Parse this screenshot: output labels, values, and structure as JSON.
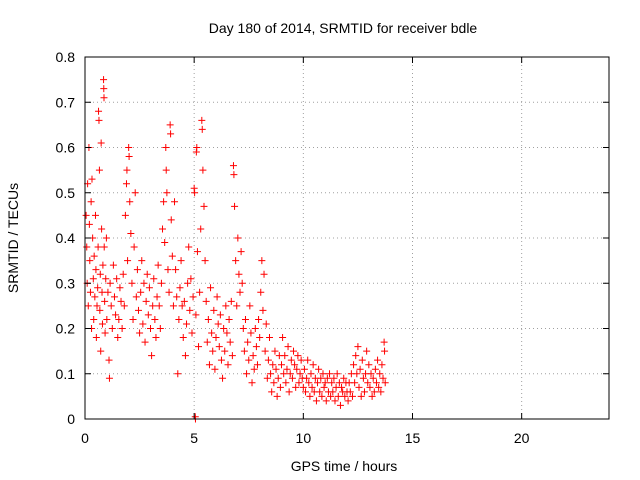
{
  "chart_data": {
    "type": "scatter",
    "title": "Day 180 of 2014, SRMTID for receiver bdle",
    "xlabel": "GPS time / hours",
    "ylabel": "SRMTID / TECUs",
    "xlim": [
      0,
      24
    ],
    "ylim": [
      0,
      0.8
    ],
    "xticks": [
      0,
      5,
      10,
      15,
      20
    ],
    "yticks": [
      0,
      0.1,
      0.2,
      0.3,
      0.4,
      0.5,
      0.6,
      0.7,
      0.8
    ],
    "xtick_labels": [
      "0",
      "5",
      "10",
      "15",
      "20"
    ],
    "ytick_labels": [
      "0",
      "0.1",
      "0.2",
      "0.3",
      "0.4",
      "0.5",
      "0.6",
      "0.7",
      "0.8"
    ],
    "grid": true,
    "marker": "+",
    "color": "#ff0000",
    "series": [
      {
        "name": "SRMTID",
        "points": [
          [
            0.05,
            0.45
          ],
          [
            0.08,
            0.38
          ],
          [
            0.1,
            0.3
          ],
          [
            0.12,
            0.52
          ],
          [
            0.15,
            0.25
          ],
          [
            0.18,
            0.6
          ],
          [
            0.2,
            0.43
          ],
          [
            0.22,
            0.35
          ],
          [
            0.25,
            0.28
          ],
          [
            0.28,
            0.48
          ],
          [
            0.3,
            0.2
          ],
          [
            0.32,
            0.53
          ],
          [
            0.35,
            0.4
          ],
          [
            0.38,
            0.31
          ],
          [
            0.4,
            0.22
          ],
          [
            0.42,
            0.36
          ],
          [
            0.45,
            0.27
          ],
          [
            0.48,
            0.45
          ],
          [
            0.5,
            0.33
          ],
          [
            0.52,
            0.18
          ],
          [
            0.55,
            0.25
          ],
          [
            0.58,
            0.29
          ],
          [
            0.6,
            0.38
          ],
          [
            0.62,
            0.68
          ],
          [
            0.64,
            0.66
          ],
          [
            0.66,
            0.55
          ],
          [
            0.68,
            0.24
          ],
          [
            0.7,
            0.32
          ],
          [
            0.72,
            0.15
          ],
          [
            0.74,
            0.61
          ],
          [
            0.76,
            0.42
          ],
          [
            0.78,
            0.28
          ],
          [
            0.8,
            0.21
          ],
          [
            0.82,
            0.34
          ],
          [
            0.85,
            0.75
          ],
          [
            0.86,
            0.73
          ],
          [
            0.87,
            0.71
          ],
          [
            0.88,
            0.38
          ],
          [
            0.9,
            0.26
          ],
          [
            0.92,
            0.19
          ],
          [
            0.95,
            0.31
          ],
          [
            0.98,
            0.4
          ],
          [
            1.0,
            0.22
          ],
          [
            1.05,
            0.28
          ],
          [
            1.1,
            0.13
          ],
          [
            1.12,
            0.09
          ],
          [
            1.15,
            0.3
          ],
          [
            1.2,
            0.25
          ],
          [
            1.25,
            0.2
          ],
          [
            1.3,
            0.34
          ],
          [
            1.35,
            0.27
          ],
          [
            1.4,
            0.23
          ],
          [
            1.45,
            0.31
          ],
          [
            1.5,
            0.18
          ],
          [
            1.55,
            0.22
          ],
          [
            1.6,
            0.29
          ],
          [
            1.65,
            0.26
          ],
          [
            1.7,
            0.2
          ],
          [
            1.75,
            0.32
          ],
          [
            1.8,
            0.25
          ],
          [
            1.85,
            0.45
          ],
          [
            1.9,
            0.52
          ],
          [
            1.92,
            0.55
          ],
          [
            1.95,
            0.35
          ],
          [
            2.0,
            0.6
          ],
          [
            2.02,
            0.58
          ],
          [
            2.05,
            0.48
          ],
          [
            2.1,
            0.41
          ],
          [
            2.15,
            0.3
          ],
          [
            2.2,
            0.22
          ],
          [
            2.25,
            0.38
          ],
          [
            2.3,
            0.5
          ],
          [
            2.35,
            0.27
          ],
          [
            2.4,
            0.33
          ],
          [
            2.45,
            0.24
          ],
          [
            2.5,
            0.19
          ],
          [
            2.55,
            0.28
          ],
          [
            2.6,
            0.35
          ],
          [
            2.65,
            0.21
          ],
          [
            2.7,
            0.3
          ],
          [
            2.75,
            0.17
          ],
          [
            2.8,
            0.26
          ],
          [
            2.85,
            0.32
          ],
          [
            2.9,
            0.23
          ],
          [
            2.95,
            0.29
          ],
          [
            3.0,
            0.2
          ],
          [
            3.05,
            0.14
          ],
          [
            3.1,
            0.25
          ],
          [
            3.15,
            0.31
          ],
          [
            3.2,
            0.22
          ],
          [
            3.25,
            0.18
          ],
          [
            3.3,
            0.27
          ],
          [
            3.35,
            0.34
          ],
          [
            3.4,
            0.25
          ],
          [
            3.45,
            0.2
          ],
          [
            3.5,
            0.3
          ],
          [
            3.55,
            0.42
          ],
          [
            3.6,
            0.48
          ],
          [
            3.65,
            0.39
          ],
          [
            3.7,
            0.6
          ],
          [
            3.72,
            0.55
          ],
          [
            3.75,
            0.5
          ],
          [
            3.8,
            0.33
          ],
          [
            3.85,
            0.28
          ],
          [
            3.9,
            0.65
          ],
          [
            3.92,
            0.63
          ],
          [
            3.95,
            0.44
          ],
          [
            4.0,
            0.36
          ],
          [
            4.05,
            0.25
          ],
          [
            4.1,
            0.48
          ],
          [
            4.15,
            0.33
          ],
          [
            4.2,
            0.27
          ],
          [
            4.25,
            0.1
          ],
          [
            4.3,
            0.22
          ],
          [
            4.35,
            0.29
          ],
          [
            4.4,
            0.35
          ],
          [
            4.45,
            0.25
          ],
          [
            4.5,
            0.18
          ],
          [
            4.55,
            0.26
          ],
          [
            4.6,
            0.14
          ],
          [
            4.65,
            0.21
          ],
          [
            4.7,
            0.3
          ],
          [
            4.75,
            0.38
          ],
          [
            4.8,
            0.24
          ],
          [
            4.85,
            0.31
          ],
          [
            4.9,
            0.19
          ],
          [
            4.95,
            0.27
          ],
          [
            5.0,
            0.51
          ],
          [
            5.02,
            0.5
          ],
          [
            5.05,
            0.005
          ],
          [
            5.06,
            0.0
          ],
          [
            5.08,
            0.23
          ],
          [
            5.1,
            0.59
          ],
          [
            5.12,
            0.6
          ],
          [
            5.15,
            0.37
          ],
          [
            5.2,
            0.16
          ],
          [
            5.25,
            0.28
          ],
          [
            5.3,
            0.42
          ],
          [
            5.35,
            0.66
          ],
          [
            5.37,
            0.64
          ],
          [
            5.4,
            0.55
          ],
          [
            5.45,
            0.47
          ],
          [
            5.5,
            0.35
          ],
          [
            5.55,
            0.26
          ],
          [
            5.6,
            0.17
          ],
          [
            5.65,
            0.22
          ],
          [
            5.7,
            0.12
          ],
          [
            5.75,
            0.29
          ],
          [
            5.8,
            0.19
          ],
          [
            5.85,
            0.15
          ],
          [
            5.9,
            0.24
          ],
          [
            5.95,
            0.11
          ],
          [
            6.0,
            0.18
          ],
          [
            6.05,
            0.27
          ],
          [
            6.1,
            0.21
          ],
          [
            6.15,
            0.16
          ],
          [
            6.2,
            0.23
          ],
          [
            6.25,
            0.13
          ],
          [
            6.3,
            0.09
          ],
          [
            6.35,
            0.2
          ],
          [
            6.4,
            0.15
          ],
          [
            6.45,
            0.25
          ],
          [
            6.5,
            0.19
          ],
          [
            6.55,
            0.12
          ],
          [
            6.6,
            0.22
          ],
          [
            6.65,
            0.17
          ],
          [
            6.7,
            0.26
          ],
          [
            6.75,
            0.14
          ],
          [
            6.8,
            0.56
          ],
          [
            6.82,
            0.54
          ],
          [
            6.85,
            0.47
          ],
          [
            6.9,
            0.35
          ],
          [
            6.95,
            0.25
          ],
          [
            7.0,
            0.4
          ],
          [
            7.05,
            0.32
          ],
          [
            7.1,
            0.28
          ],
          [
            7.15,
            0.37
          ],
          [
            7.2,
            0.3
          ],
          [
            7.25,
            0.2
          ],
          [
            7.3,
            0.15
          ],
          [
            7.35,
            0.22
          ],
          [
            7.4,
            0.1
          ],
          [
            7.45,
            0.17
          ],
          [
            7.5,
            0.13
          ],
          [
            7.55,
            0.25
          ],
          [
            7.6,
            0.19
          ],
          [
            7.65,
            0.08
          ],
          [
            7.7,
            0.14
          ],
          [
            7.75,
            0.11
          ],
          [
            7.8,
            0.2
          ],
          [
            7.85,
            0.16
          ],
          [
            7.9,
            0.12
          ],
          [
            7.95,
            0.22
          ],
          [
            8.0,
            0.18
          ],
          [
            8.05,
            0.28
          ],
          [
            8.1,
            0.35
          ],
          [
            8.15,
            0.24
          ],
          [
            8.2,
            0.32
          ],
          [
            8.25,
            0.15
          ],
          [
            8.3,
            0.21
          ],
          [
            8.35,
            0.09
          ],
          [
            8.4,
            0.13
          ],
          [
            8.45,
            0.18
          ],
          [
            8.5,
            0.1
          ],
          [
            8.55,
            0.06
          ],
          [
            8.6,
            0.12
          ],
          [
            8.65,
            0.08
          ],
          [
            8.7,
            0.15
          ],
          [
            8.75,
            0.11
          ],
          [
            8.8,
            0.05
          ],
          [
            8.85,
            0.09
          ],
          [
            8.9,
            0.14
          ],
          [
            8.95,
            0.07
          ],
          [
            9.0,
            0.12
          ],
          [
            9.05,
            0.18
          ],
          [
            9.1,
            0.1
          ],
          [
            9.15,
            0.14
          ],
          [
            9.2,
            0.08
          ],
          [
            9.25,
            0.11
          ],
          [
            9.3,
            0.16
          ],
          [
            9.35,
            0.06
          ],
          [
            9.4,
            0.1
          ],
          [
            9.45,
            0.13
          ],
          [
            9.5,
            0.09
          ],
          [
            9.55,
            0.15
          ],
          [
            9.6,
            0.12
          ],
          [
            9.65,
            0.07
          ],
          [
            9.7,
            0.11
          ],
          [
            9.75,
            0.14
          ],
          [
            9.8,
            0.08
          ],
          [
            9.85,
            0.1
          ],
          [
            9.9,
            0.13
          ],
          [
            9.95,
            0.09
          ],
          [
            10.0,
            0.07
          ],
          [
            10.05,
            0.11
          ],
          [
            10.1,
            0.06
          ],
          [
            10.15,
            0.09
          ],
          [
            10.2,
            0.13
          ],
          [
            10.25,
            0.08
          ],
          [
            10.3,
            0.05
          ],
          [
            10.35,
            0.1
          ],
          [
            10.4,
            0.07
          ],
          [
            10.45,
            0.12
          ],
          [
            10.5,
            0.06
          ],
          [
            10.55,
            0.09
          ],
          [
            10.6,
            0.04
          ],
          [
            10.65,
            0.08
          ],
          [
            10.7,
            0.11
          ],
          [
            10.75,
            0.06
          ],
          [
            10.8,
            0.09
          ],
          [
            10.85,
            0.05
          ],
          [
            10.9,
            0.1
          ],
          [
            10.95,
            0.07
          ],
          [
            11.0,
            0.08
          ],
          [
            11.05,
            0.04
          ],
          [
            11.1,
            0.09
          ],
          [
            11.15,
            0.06
          ],
          [
            11.2,
            0.1
          ],
          [
            11.25,
            0.05
          ],
          [
            11.3,
            0.08
          ],
          [
            11.35,
            0.06
          ],
          [
            11.4,
            0.09
          ],
          [
            11.45,
            0.04
          ],
          [
            11.5,
            0.07
          ],
          [
            11.55,
            0.1
          ],
          [
            11.6,
            0.05
          ],
          [
            11.65,
            0.08
          ],
          [
            11.7,
            0.03
          ],
          [
            11.75,
            0.07
          ],
          [
            11.8,
            0.06
          ],
          [
            11.85,
            0.09
          ],
          [
            11.9,
            0.05
          ],
          [
            11.95,
            0.08
          ],
          [
            12.0,
            0.06
          ],
          [
            12.05,
            0.04
          ],
          [
            12.1,
            0.08
          ],
          [
            12.15,
            0.06
          ],
          [
            12.2,
            0.1
          ],
          [
            12.25,
            0.05
          ],
          [
            12.3,
            0.12
          ],
          [
            12.35,
            0.08
          ],
          [
            12.4,
            0.14
          ],
          [
            12.45,
            0.1
          ],
          [
            12.5,
            0.16
          ],
          [
            12.55,
            0.07
          ],
          [
            12.6,
            0.11
          ],
          [
            12.65,
            0.05
          ],
          [
            12.7,
            0.13
          ],
          [
            12.75,
            0.09
          ],
          [
            12.8,
            0.06
          ],
          [
            12.85,
            0.1
          ],
          [
            12.9,
            0.15
          ],
          [
            12.95,
            0.08
          ],
          [
            13.0,
            0.12
          ],
          [
            13.05,
            0.07
          ],
          [
            13.1,
            0.1
          ],
          [
            13.15,
            0.05
          ],
          [
            13.2,
            0.09
          ],
          [
            13.25,
            0.06
          ],
          [
            13.3,
            0.11
          ],
          [
            13.35,
            0.08
          ],
          [
            13.4,
            0.13
          ],
          [
            13.45,
            0.07
          ],
          [
            13.5,
            0.1
          ],
          [
            13.55,
            0.06
          ],
          [
            13.6,
            0.12
          ],
          [
            13.65,
            0.09
          ],
          [
            13.7,
            0.17
          ],
          [
            13.72,
            0.15
          ],
          [
            13.75,
            0.08
          ]
        ]
      }
    ]
  }
}
